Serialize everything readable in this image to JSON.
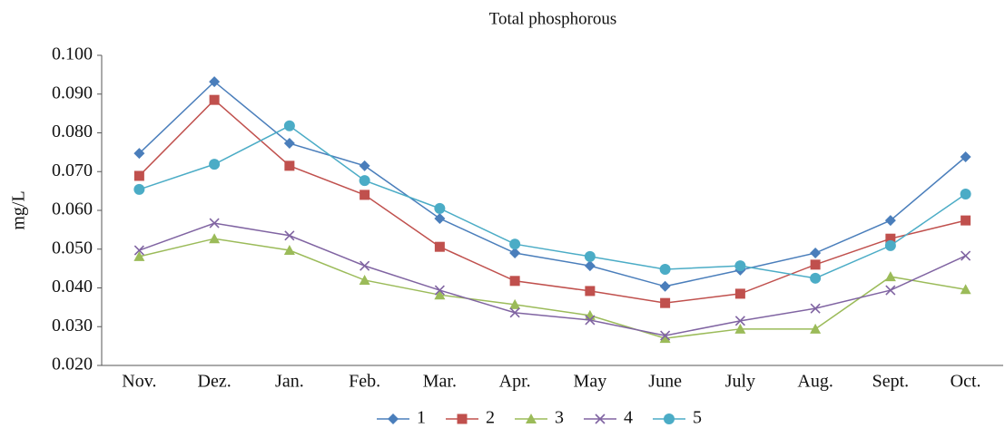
{
  "chart_data": {
    "type": "line",
    "title": "Total phosphorous",
    "y_label": "mg/L",
    "categories": [
      "Nov.",
      "Dez.",
      "Jan.",
      "Feb.",
      "Mar.",
      "Apr.",
      "May",
      "June",
      "July",
      "Aug.",
      "Sept.",
      "Oct."
    ],
    "series": [
      {
        "name": "1",
        "color": "#4a7ebb",
        "marker": "diamond",
        "values": [
          0.0747,
          0.0932,
          0.0773,
          0.0715,
          0.0579,
          0.049,
          0.0457,
          0.0404,
          0.0446,
          0.049,
          0.0574,
          0.0738
        ]
      },
      {
        "name": "2",
        "color": "#c0504d",
        "marker": "square",
        "values": [
          0.0689,
          0.0885,
          0.0715,
          0.064,
          0.0506,
          0.0418,
          0.0392,
          0.0361,
          0.0385,
          0.046,
          0.0527,
          0.0574
        ]
      },
      {
        "name": "3",
        "color": "#9bbb59",
        "marker": "triangle",
        "values": [
          0.0481,
          0.0527,
          0.0497,
          0.042,
          0.0382,
          0.0357,
          0.0329,
          0.027,
          0.0294,
          0.0294,
          0.0429,
          0.0396
        ]
      },
      {
        "name": "4",
        "color": "#8064a2",
        "marker": "cross",
        "values": [
          0.0497,
          0.0567,
          0.0535,
          0.0457,
          0.0394,
          0.0336,
          0.0317,
          0.0277,
          0.0315,
          0.0347,
          0.0394,
          0.0483
        ]
      },
      {
        "name": "5",
        "color": "#4bacc6",
        "marker": "circle",
        "values": [
          0.0654,
          0.0719,
          0.0818,
          0.0677,
          0.0605,
          0.0513,
          0.0481,
          0.0448,
          0.0457,
          0.0425,
          0.0509,
          0.0642
        ]
      }
    ],
    "ylim": [
      0.02,
      0.1
    ],
    "yticks": [
      {
        "value": 0.02,
        "label": "0.020"
      },
      {
        "value": 0.03,
        "label": "0.030"
      },
      {
        "value": 0.04,
        "label": "0.040"
      },
      {
        "value": 0.05,
        "label": "0.050"
      },
      {
        "value": 0.06,
        "label": "0.060"
      },
      {
        "value": 0.07,
        "label": "0.070"
      },
      {
        "value": 0.08,
        "label": "0.080"
      },
      {
        "value": 0.09,
        "label": "0.090"
      },
      {
        "value": 0.1,
        "label": "0.100"
      }
    ],
    "grid": false,
    "legend": "bottom"
  }
}
